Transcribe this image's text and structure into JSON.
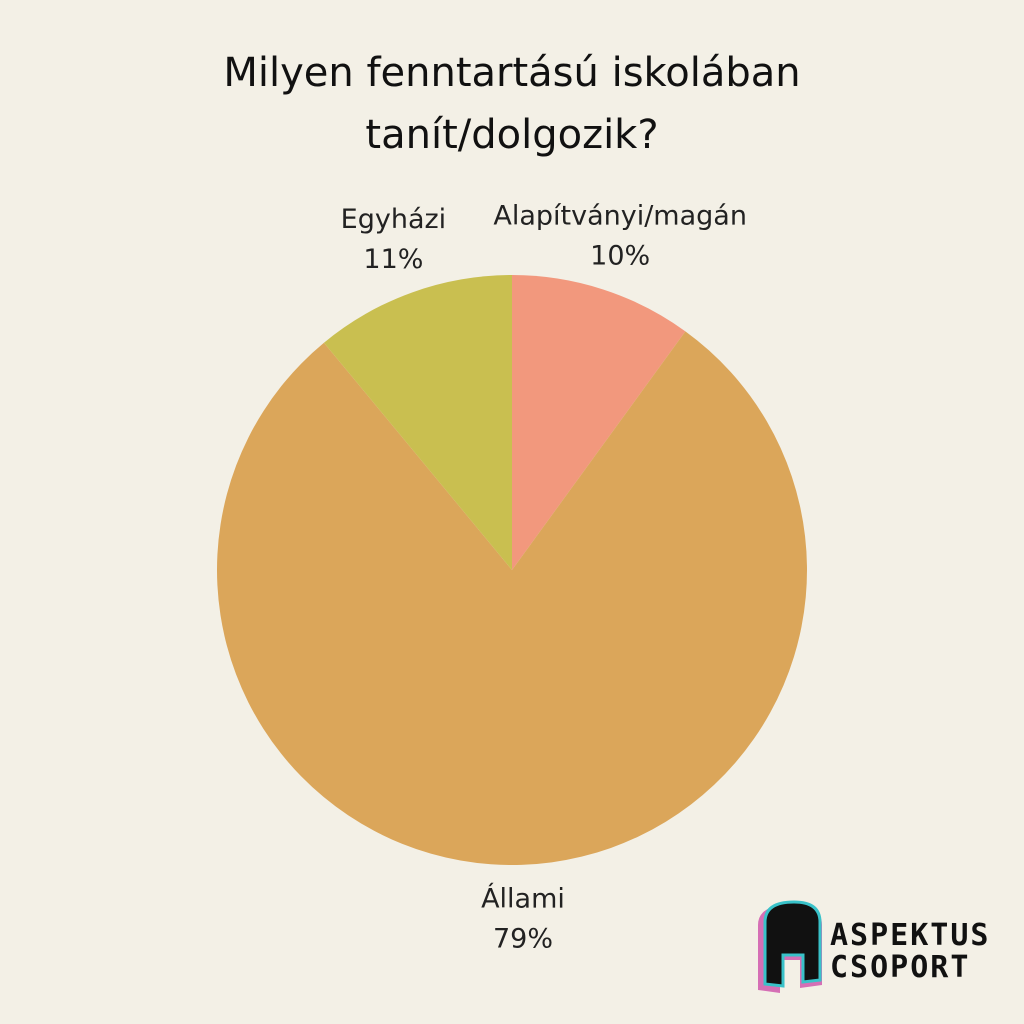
{
  "chart_data": {
    "type": "pie",
    "title": "Milyen fenntartású iskolában tanít/dolgozik?",
    "categories": [
      "Alapítványi/magán",
      "Állami",
      "Egyházi"
    ],
    "values": [
      10,
      79,
      11
    ],
    "value_labels": [
      "10%",
      "79%",
      "11%"
    ],
    "colors": [
      "#f2987d",
      "#dba65a",
      "#c9bf50"
    ]
  },
  "logo": {
    "lines": [
      "ASPEKTUS",
      "CSOPORT"
    ]
  }
}
